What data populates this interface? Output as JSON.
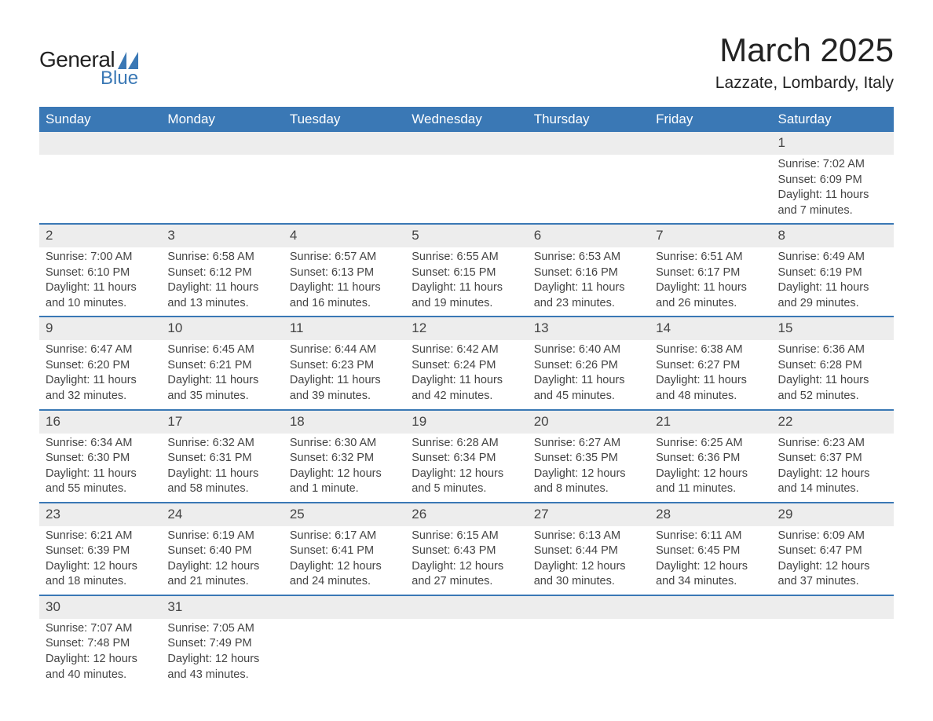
{
  "logo": {
    "text_general": "General",
    "text_blue": "Blue",
    "logo_color": "#3a78b5"
  },
  "title": "March 2025",
  "location": "Lazzate, Lombardy, Italy",
  "colors": {
    "header_bg": "#3a78b5",
    "header_text": "#ffffff",
    "daynum_bg": "#ededed",
    "row_border": "#3a78b5",
    "text": "#444444",
    "background": "#ffffff"
  },
  "typography": {
    "title_fontsize": 42,
    "location_fontsize": 21,
    "header_fontsize": 17,
    "daynum_fontsize": 17,
    "body_fontsize": 14.5
  },
  "weekdays": [
    "Sunday",
    "Monday",
    "Tuesday",
    "Wednesday",
    "Thursday",
    "Friday",
    "Saturday"
  ],
  "weeks": [
    [
      null,
      null,
      null,
      null,
      null,
      null,
      {
        "day": "1",
        "sunrise": "Sunrise: 7:02 AM",
        "sunset": "Sunset: 6:09 PM",
        "daylight1": "Daylight: 11 hours",
        "daylight2": "and 7 minutes."
      }
    ],
    [
      {
        "day": "2",
        "sunrise": "Sunrise: 7:00 AM",
        "sunset": "Sunset: 6:10 PM",
        "daylight1": "Daylight: 11 hours",
        "daylight2": "and 10 minutes."
      },
      {
        "day": "3",
        "sunrise": "Sunrise: 6:58 AM",
        "sunset": "Sunset: 6:12 PM",
        "daylight1": "Daylight: 11 hours",
        "daylight2": "and 13 minutes."
      },
      {
        "day": "4",
        "sunrise": "Sunrise: 6:57 AM",
        "sunset": "Sunset: 6:13 PM",
        "daylight1": "Daylight: 11 hours",
        "daylight2": "and 16 minutes."
      },
      {
        "day": "5",
        "sunrise": "Sunrise: 6:55 AM",
        "sunset": "Sunset: 6:15 PM",
        "daylight1": "Daylight: 11 hours",
        "daylight2": "and 19 minutes."
      },
      {
        "day": "6",
        "sunrise": "Sunrise: 6:53 AM",
        "sunset": "Sunset: 6:16 PM",
        "daylight1": "Daylight: 11 hours",
        "daylight2": "and 23 minutes."
      },
      {
        "day": "7",
        "sunrise": "Sunrise: 6:51 AM",
        "sunset": "Sunset: 6:17 PM",
        "daylight1": "Daylight: 11 hours",
        "daylight2": "and 26 minutes."
      },
      {
        "day": "8",
        "sunrise": "Sunrise: 6:49 AM",
        "sunset": "Sunset: 6:19 PM",
        "daylight1": "Daylight: 11 hours",
        "daylight2": "and 29 minutes."
      }
    ],
    [
      {
        "day": "9",
        "sunrise": "Sunrise: 6:47 AM",
        "sunset": "Sunset: 6:20 PM",
        "daylight1": "Daylight: 11 hours",
        "daylight2": "and 32 minutes."
      },
      {
        "day": "10",
        "sunrise": "Sunrise: 6:45 AM",
        "sunset": "Sunset: 6:21 PM",
        "daylight1": "Daylight: 11 hours",
        "daylight2": "and 35 minutes."
      },
      {
        "day": "11",
        "sunrise": "Sunrise: 6:44 AM",
        "sunset": "Sunset: 6:23 PM",
        "daylight1": "Daylight: 11 hours",
        "daylight2": "and 39 minutes."
      },
      {
        "day": "12",
        "sunrise": "Sunrise: 6:42 AM",
        "sunset": "Sunset: 6:24 PM",
        "daylight1": "Daylight: 11 hours",
        "daylight2": "and 42 minutes."
      },
      {
        "day": "13",
        "sunrise": "Sunrise: 6:40 AM",
        "sunset": "Sunset: 6:26 PM",
        "daylight1": "Daylight: 11 hours",
        "daylight2": "and 45 minutes."
      },
      {
        "day": "14",
        "sunrise": "Sunrise: 6:38 AM",
        "sunset": "Sunset: 6:27 PM",
        "daylight1": "Daylight: 11 hours",
        "daylight2": "and 48 minutes."
      },
      {
        "day": "15",
        "sunrise": "Sunrise: 6:36 AM",
        "sunset": "Sunset: 6:28 PM",
        "daylight1": "Daylight: 11 hours",
        "daylight2": "and 52 minutes."
      }
    ],
    [
      {
        "day": "16",
        "sunrise": "Sunrise: 6:34 AM",
        "sunset": "Sunset: 6:30 PM",
        "daylight1": "Daylight: 11 hours",
        "daylight2": "and 55 minutes."
      },
      {
        "day": "17",
        "sunrise": "Sunrise: 6:32 AM",
        "sunset": "Sunset: 6:31 PM",
        "daylight1": "Daylight: 11 hours",
        "daylight2": "and 58 minutes."
      },
      {
        "day": "18",
        "sunrise": "Sunrise: 6:30 AM",
        "sunset": "Sunset: 6:32 PM",
        "daylight1": "Daylight: 12 hours",
        "daylight2": "and 1 minute."
      },
      {
        "day": "19",
        "sunrise": "Sunrise: 6:28 AM",
        "sunset": "Sunset: 6:34 PM",
        "daylight1": "Daylight: 12 hours",
        "daylight2": "and 5 minutes."
      },
      {
        "day": "20",
        "sunrise": "Sunrise: 6:27 AM",
        "sunset": "Sunset: 6:35 PM",
        "daylight1": "Daylight: 12 hours",
        "daylight2": "and 8 minutes."
      },
      {
        "day": "21",
        "sunrise": "Sunrise: 6:25 AM",
        "sunset": "Sunset: 6:36 PM",
        "daylight1": "Daylight: 12 hours",
        "daylight2": "and 11 minutes."
      },
      {
        "day": "22",
        "sunrise": "Sunrise: 6:23 AM",
        "sunset": "Sunset: 6:37 PM",
        "daylight1": "Daylight: 12 hours",
        "daylight2": "and 14 minutes."
      }
    ],
    [
      {
        "day": "23",
        "sunrise": "Sunrise: 6:21 AM",
        "sunset": "Sunset: 6:39 PM",
        "daylight1": "Daylight: 12 hours",
        "daylight2": "and 18 minutes."
      },
      {
        "day": "24",
        "sunrise": "Sunrise: 6:19 AM",
        "sunset": "Sunset: 6:40 PM",
        "daylight1": "Daylight: 12 hours",
        "daylight2": "and 21 minutes."
      },
      {
        "day": "25",
        "sunrise": "Sunrise: 6:17 AM",
        "sunset": "Sunset: 6:41 PM",
        "daylight1": "Daylight: 12 hours",
        "daylight2": "and 24 minutes."
      },
      {
        "day": "26",
        "sunrise": "Sunrise: 6:15 AM",
        "sunset": "Sunset: 6:43 PM",
        "daylight1": "Daylight: 12 hours",
        "daylight2": "and 27 minutes."
      },
      {
        "day": "27",
        "sunrise": "Sunrise: 6:13 AM",
        "sunset": "Sunset: 6:44 PM",
        "daylight1": "Daylight: 12 hours",
        "daylight2": "and 30 minutes."
      },
      {
        "day": "28",
        "sunrise": "Sunrise: 6:11 AM",
        "sunset": "Sunset: 6:45 PM",
        "daylight1": "Daylight: 12 hours",
        "daylight2": "and 34 minutes."
      },
      {
        "day": "29",
        "sunrise": "Sunrise: 6:09 AM",
        "sunset": "Sunset: 6:47 PM",
        "daylight1": "Daylight: 12 hours",
        "daylight2": "and 37 minutes."
      }
    ],
    [
      {
        "day": "30",
        "sunrise": "Sunrise: 7:07 AM",
        "sunset": "Sunset: 7:48 PM",
        "daylight1": "Daylight: 12 hours",
        "daylight2": "and 40 minutes."
      },
      {
        "day": "31",
        "sunrise": "Sunrise: 7:05 AM",
        "sunset": "Sunset: 7:49 PM",
        "daylight1": "Daylight: 12 hours",
        "daylight2": "and 43 minutes."
      },
      null,
      null,
      null,
      null,
      null
    ]
  ]
}
